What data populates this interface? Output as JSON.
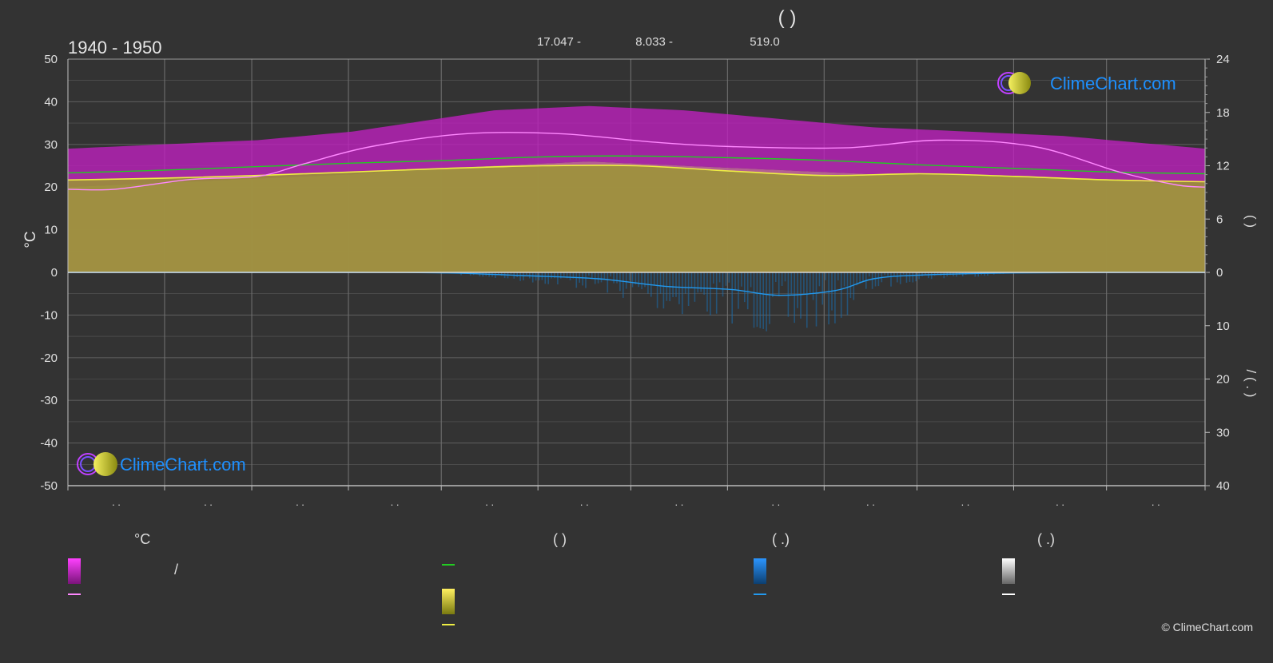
{
  "title": "( )",
  "period": "1940 - 1950",
  "stats": [
    "17.047 -",
    "8.033 -",
    "519.0"
  ],
  "brand": {
    "logo_text": "ClimeChart.com",
    "copyright": "© ClimeChart.com",
    "colors": {
      "text": "#1e90ff",
      "ring": "#c040ff",
      "sun": "#d8d820"
    }
  },
  "colors": {
    "background": "#333333",
    "grid": "#5a5a5a",
    "sunshine_band": "#c020c0",
    "temp_band": "#d86ab0",
    "daylight_fill": "#9a9a30",
    "daylight_line": "#22cc22",
    "sunshine_line": "#eeee44",
    "max_temp_line": "#ff88ff",
    "precip_line": "#2299ee",
    "precip_bars": "#1a6fb0"
  },
  "legend": {
    "col1": {
      "header": "°C",
      "item1_text": "/"
    },
    "col2": {
      "header": "( )"
    },
    "col3": {
      "header": "( .)"
    },
    "col4": {
      "header": "( .)"
    }
  },
  "chart_data": {
    "type": "area",
    "title": "( )",
    "subtitle": "1940 - 1950",
    "y_left": {
      "label": "°C",
      "min": -50,
      "max": 50,
      "ticks": [
        50,
        40,
        30,
        20,
        10,
        0,
        -10,
        -20,
        -30,
        -40,
        -50
      ]
    },
    "y_right_top": {
      "label": "( )",
      "min": 0,
      "max": 24,
      "ticks": [
        24,
        18,
        12,
        6,
        0
      ]
    },
    "y_right_bottom": {
      "label": "/ ( . )",
      "min": 0,
      "max": 40,
      "ticks": [
        0,
        10,
        20,
        30,
        40
      ]
    },
    "x_ticks": [
      ". .",
      ". .",
      ". .",
      ". .",
      ". .",
      ". .",
      ". .",
      ". .",
      ". .",
      ". .",
      ". .",
      ". ."
    ],
    "grid": true,
    "series": [
      {
        "x": [
          0.0,
          1.0,
          2.0,
          3.0,
          3.6,
          4.5,
          5.5,
          6.5,
          7.5,
          8.5,
          9.5,
          10.5,
          11.5,
          12.0
        ],
        "values": [
          29,
          30,
          31,
          33,
          35,
          38,
          39,
          38,
          36,
          34,
          33,
          32,
          30,
          29
        ]
      },
      {
        "x": [
          0.0,
          1.0,
          2.0,
          3.0,
          3.6,
          4.5,
          5.5,
          6.5,
          7.5,
          8.5,
          9.5,
          10.5,
          11.5,
          12.0
        ],
        "values": [
          20,
          21,
          22,
          23,
          24,
          25,
          26,
          25,
          24,
          23,
          23,
          22,
          21,
          20
        ]
      },
      {
        "x": [
          0.0,
          1.0,
          2.0,
          3.0,
          4.0,
          5.0,
          6.0,
          7.0,
          8.0,
          9.0,
          10.0,
          11.0,
          12.0
        ],
        "values": [
          11.2,
          11.5,
          11.9,
          12.3,
          12.6,
          13.0,
          13.1,
          12.9,
          12.6,
          12.1,
          11.7,
          11.3,
          11.1
        ]
      },
      {
        "x": [
          0.0,
          1.0,
          2.0,
          3.0,
          4.0,
          5.0,
          6.0,
          7.0,
          8.0,
          9.0,
          10.0,
          11.0,
          12.0
        ],
        "values": [
          10.4,
          10.6,
          10.9,
          11.3,
          11.7,
          12.0,
          12.0,
          11.4,
          10.9,
          11.1,
          10.8,
          10.4,
          10.2
        ]
      },
      {
        "x": [
          0.0,
          0.5,
          1.3,
          2.0,
          2.5,
          3.2,
          4.2,
          5.2,
          6.2,
          7.0,
          8.2,
          9.2,
          10.2,
          11.1,
          11.7,
          12.0
        ],
        "values": [
          19.5,
          19.5,
          21.8,
          22.5,
          25.5,
          29.5,
          32.5,
          32.5,
          30.5,
          29.5,
          29.2,
          31.0,
          29.5,
          23.5,
          20.5,
          20.0
        ]
      },
      {
        "x": [
          0.0,
          1.0,
          2.0,
          3.0,
          4.0,
          4.8,
          5.6,
          6.3,
          7.0,
          7.5,
          8.1,
          8.5,
          9.0,
          10.0,
          11.0,
          12.0
        ],
        "values": [
          0.0,
          0.0,
          0.0,
          0.0,
          0.1,
          0.6,
          1.2,
          2.6,
          3.2,
          4.3,
          3.4,
          1.2,
          0.5,
          0.1,
          0.0,
          0.0
        ]
      }
    ]
  }
}
